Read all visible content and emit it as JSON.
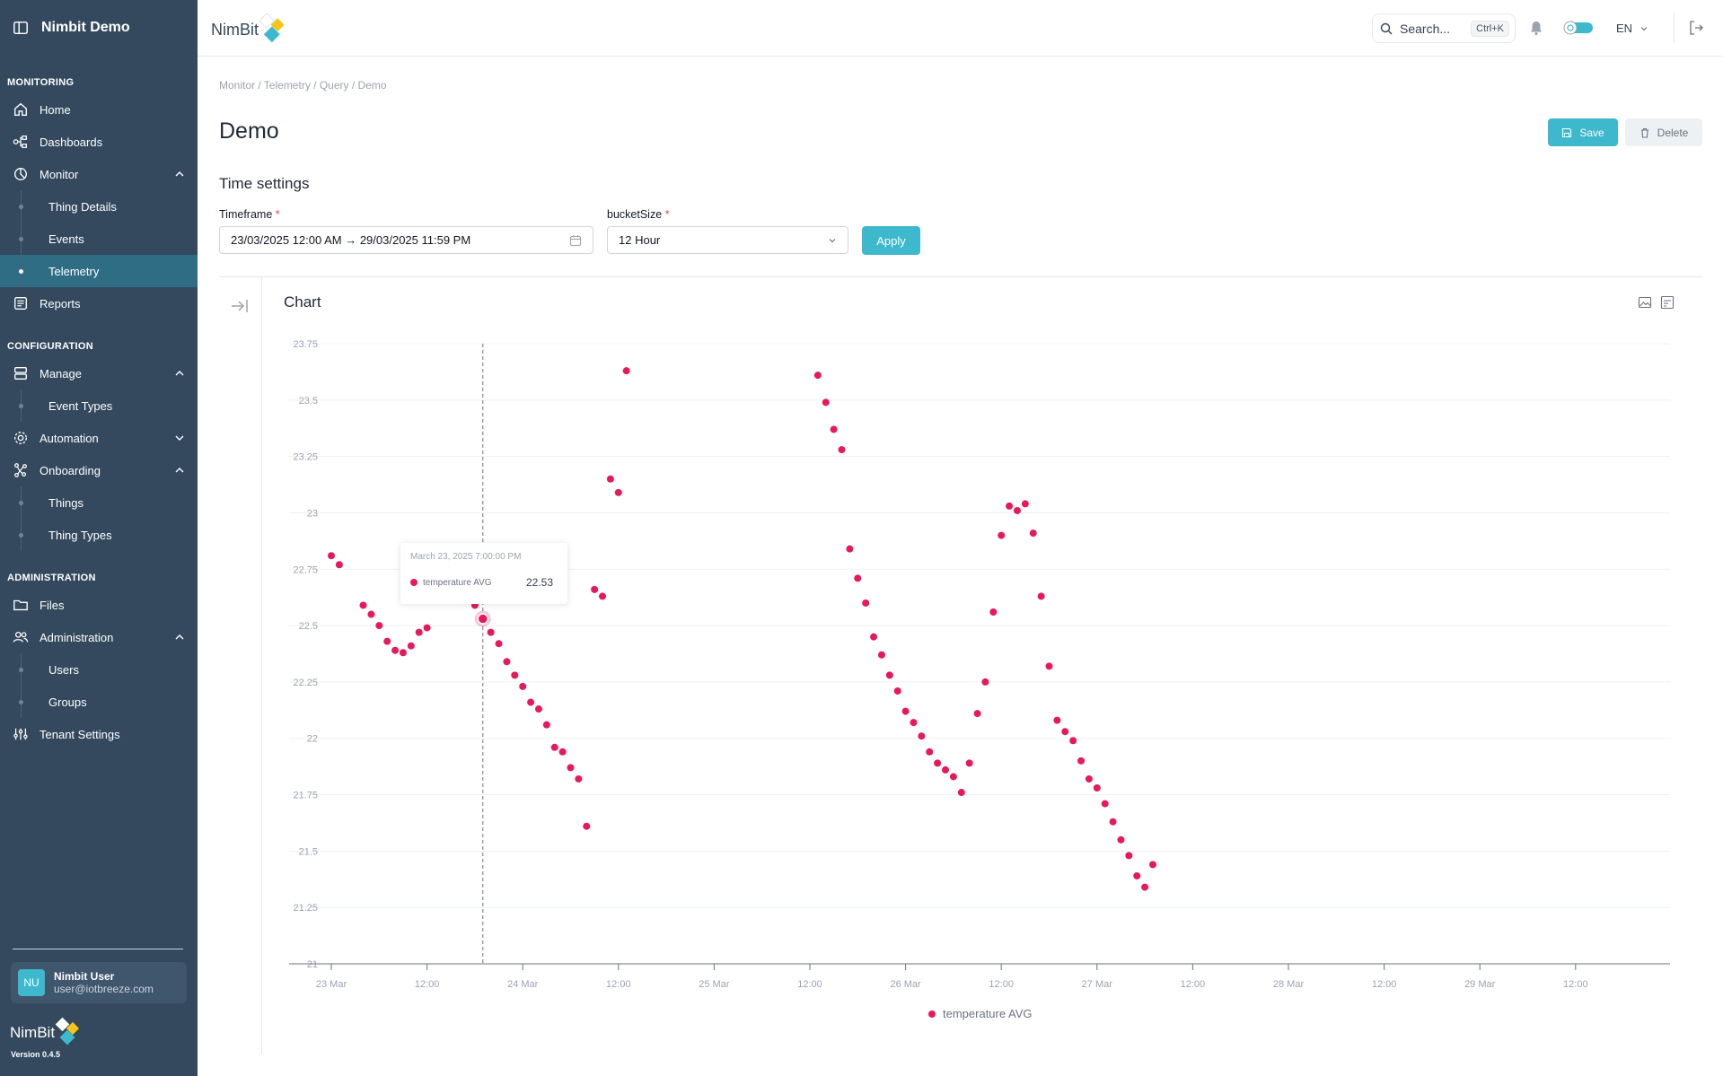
{
  "app": {
    "title": "Nimbit Demo",
    "logo_text": "NimBit",
    "version": "Version 0.4.5"
  },
  "sidebar": {
    "sections": {
      "monitoring": "MONITORING",
      "configuration": "CONFIGURATION",
      "administration": "ADMINISTRATION"
    },
    "items": {
      "home": "Home",
      "dashboards": "Dashboards",
      "monitor": "Monitor",
      "thing_details": "Thing Details",
      "events": "Events",
      "telemetry": "Telemetry",
      "reports": "Reports",
      "manage": "Manage",
      "event_types": "Event Types",
      "automation": "Automation",
      "onboarding": "Onboarding",
      "things": "Things",
      "thing_types": "Thing Types",
      "files": "Files",
      "administration": "Administration",
      "users": "Users",
      "groups": "Groups",
      "tenant_settings": "Tenant Settings"
    },
    "active_item": "Telemetry"
  },
  "user": {
    "initials": "NU",
    "name": "Nimbit User",
    "email": "user@iotbreeze.com"
  },
  "header": {
    "search_label": "Search...",
    "search_shortcut": "Ctrl+K",
    "language": "EN"
  },
  "breadcrumb": "Monitor / Telemetry / Query / Demo",
  "page": {
    "title": "Demo",
    "save_label": "Save",
    "delete_label": "Delete"
  },
  "time_settings": {
    "title": "Time settings",
    "timeframe_label": "Timeframe",
    "timeframe_value": "23/03/2025 12:00 AM → 29/03/2025 11:59 PM",
    "bucket_label": "bucketSize",
    "bucket_value": "12 Hour",
    "apply_label": "Apply"
  },
  "colors": {
    "accent": "#3db8cc",
    "sidebar": "#34495e",
    "series": "#e8195a"
  },
  "tooltip": {
    "timestamp": "March 23, 2025 7:00:00 PM",
    "series": "temperature AVG",
    "value": "22.53"
  },
  "chart_data": {
    "type": "scatter",
    "title": "Chart",
    "ylim": [
      21,
      23.75
    ],
    "y_ticks": [
      "21",
      "21.25",
      "21.5",
      "21.75",
      "22",
      "22.25",
      "22.5",
      "22.75",
      "23",
      "23.25",
      "23.5",
      "23.75"
    ],
    "x_ticks": [
      "23 Mar",
      "12:00",
      "24 Mar",
      "12:00",
      "25 Mar",
      "12:00",
      "26 Mar",
      "12:00",
      "27 Mar",
      "12:00",
      "28 Mar",
      "12:00",
      "29 Mar",
      "12:00"
    ],
    "grid": "horizontal",
    "legend_position": "bottom-center",
    "hover_x_hours": 19,
    "series": [
      {
        "name": "temperature AVG",
        "points": [
          [
            0,
            22.81
          ],
          [
            1,
            22.77
          ],
          [
            4,
            22.59
          ],
          [
            5,
            22.55
          ],
          [
            6,
            22.5
          ],
          [
            7,
            22.43
          ],
          [
            8,
            22.39
          ],
          [
            9,
            22.38
          ],
          [
            10,
            22.41
          ],
          [
            11,
            22.47
          ],
          [
            12,
            22.49
          ],
          [
            18,
            22.59
          ],
          [
            19,
            22.53
          ],
          [
            20,
            22.47
          ],
          [
            21,
            22.42
          ],
          [
            22,
            22.34
          ],
          [
            23,
            22.28
          ],
          [
            24,
            22.23
          ],
          [
            25,
            22.16
          ],
          [
            26,
            22.13
          ],
          [
            27,
            22.06
          ],
          [
            28,
            21.96
          ],
          [
            29,
            21.94
          ],
          [
            30,
            21.87
          ],
          [
            31,
            21.82
          ],
          [
            32,
            21.61
          ],
          [
            33,
            22.66
          ],
          [
            34,
            22.63
          ],
          [
            35,
            23.15
          ],
          [
            36,
            23.09
          ],
          [
            37,
            23.63
          ],
          [
            61,
            23.61
          ],
          [
            62,
            23.49
          ],
          [
            63,
            23.37
          ],
          [
            64,
            23.28
          ],
          [
            65,
            22.84
          ],
          [
            66,
            22.71
          ],
          [
            67,
            22.6
          ],
          [
            68,
            22.45
          ],
          [
            69,
            22.37
          ],
          [
            70,
            22.28
          ],
          [
            71,
            22.21
          ],
          [
            72,
            22.12
          ],
          [
            73,
            22.07
          ],
          [
            74,
            22.01
          ],
          [
            75,
            21.94
          ],
          [
            76,
            21.89
          ],
          [
            77,
            21.86
          ],
          [
            78,
            21.83
          ],
          [
            79,
            21.76
          ],
          [
            80,
            21.89
          ],
          [
            81,
            22.11
          ],
          [
            82,
            22.25
          ],
          [
            83,
            22.56
          ],
          [
            84,
            22.9
          ],
          [
            85,
            23.03
          ],
          [
            86,
            23.01
          ],
          [
            87,
            23.04
          ],
          [
            88,
            22.91
          ],
          [
            89,
            22.63
          ],
          [
            90,
            22.32
          ],
          [
            91,
            22.08
          ],
          [
            92,
            22.03
          ],
          [
            93,
            21.99
          ],
          [
            94,
            21.9
          ],
          [
            95,
            21.82
          ],
          [
            96,
            21.78
          ],
          [
            97,
            21.71
          ],
          [
            98,
            21.63
          ],
          [
            99,
            21.55
          ],
          [
            100,
            21.48
          ],
          [
            101,
            21.39
          ],
          [
            102,
            21.34
          ],
          [
            103,
            21.44
          ]
        ]
      }
    ]
  }
}
